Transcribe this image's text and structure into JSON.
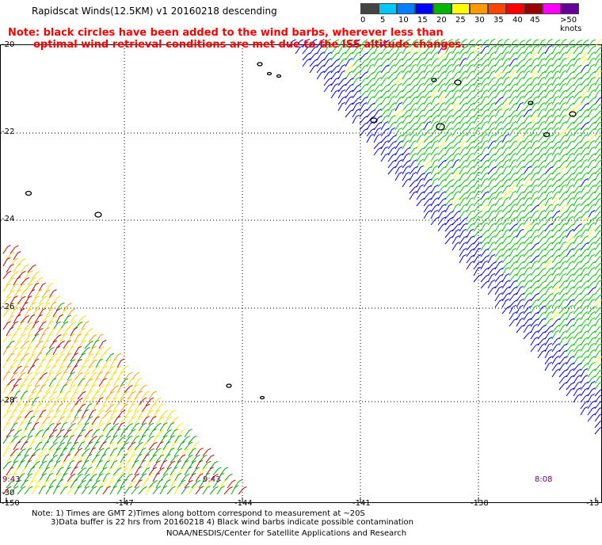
{
  "title": "Rapidscat Winds(12.5KM) v1 20160218 descending",
  "note_line1": "Note: black circles have been added to the wind barbs, wherever less than",
  "note_line2": "optimal wind retrieval conditions are met due to the ISS altitude changes.",
  "legend": {
    "colors": [
      "#444444",
      "#00c8ff",
      "#0080ff",
      "#0000ff",
      "#00b400",
      "#ffff00",
      "#ff9900",
      "#ff4400",
      "#ff0000",
      "#990000",
      "#ff00ff",
      "#660099"
    ],
    "labels": [
      "0",
      "5",
      "10",
      "15",
      "20",
      "25",
      "30",
      "35",
      "40",
      "45",
      ">50 knots"
    ]
  },
  "lat_ticks": [
    "-20",
    "-22",
    "-24",
    "-26",
    "-28",
    "-30"
  ],
  "lon_ticks": [
    "-150",
    "-147",
    "-144",
    "-141",
    "-138",
    "-13"
  ],
  "time_labels": [
    "9:43",
    "9:43",
    "8:08"
  ],
  "footnote_line1": "Note: 1) Times are GMT 2)Times along bottom correspond to measurement at ~20S",
  "footnote_line2": "3)Data buffer is 22 hrs from 20160218 4) Black wind barbs indicate possible contamination",
  "credit": "NOAA/NESDIS/Center for Satellite Applications and Research"
}
